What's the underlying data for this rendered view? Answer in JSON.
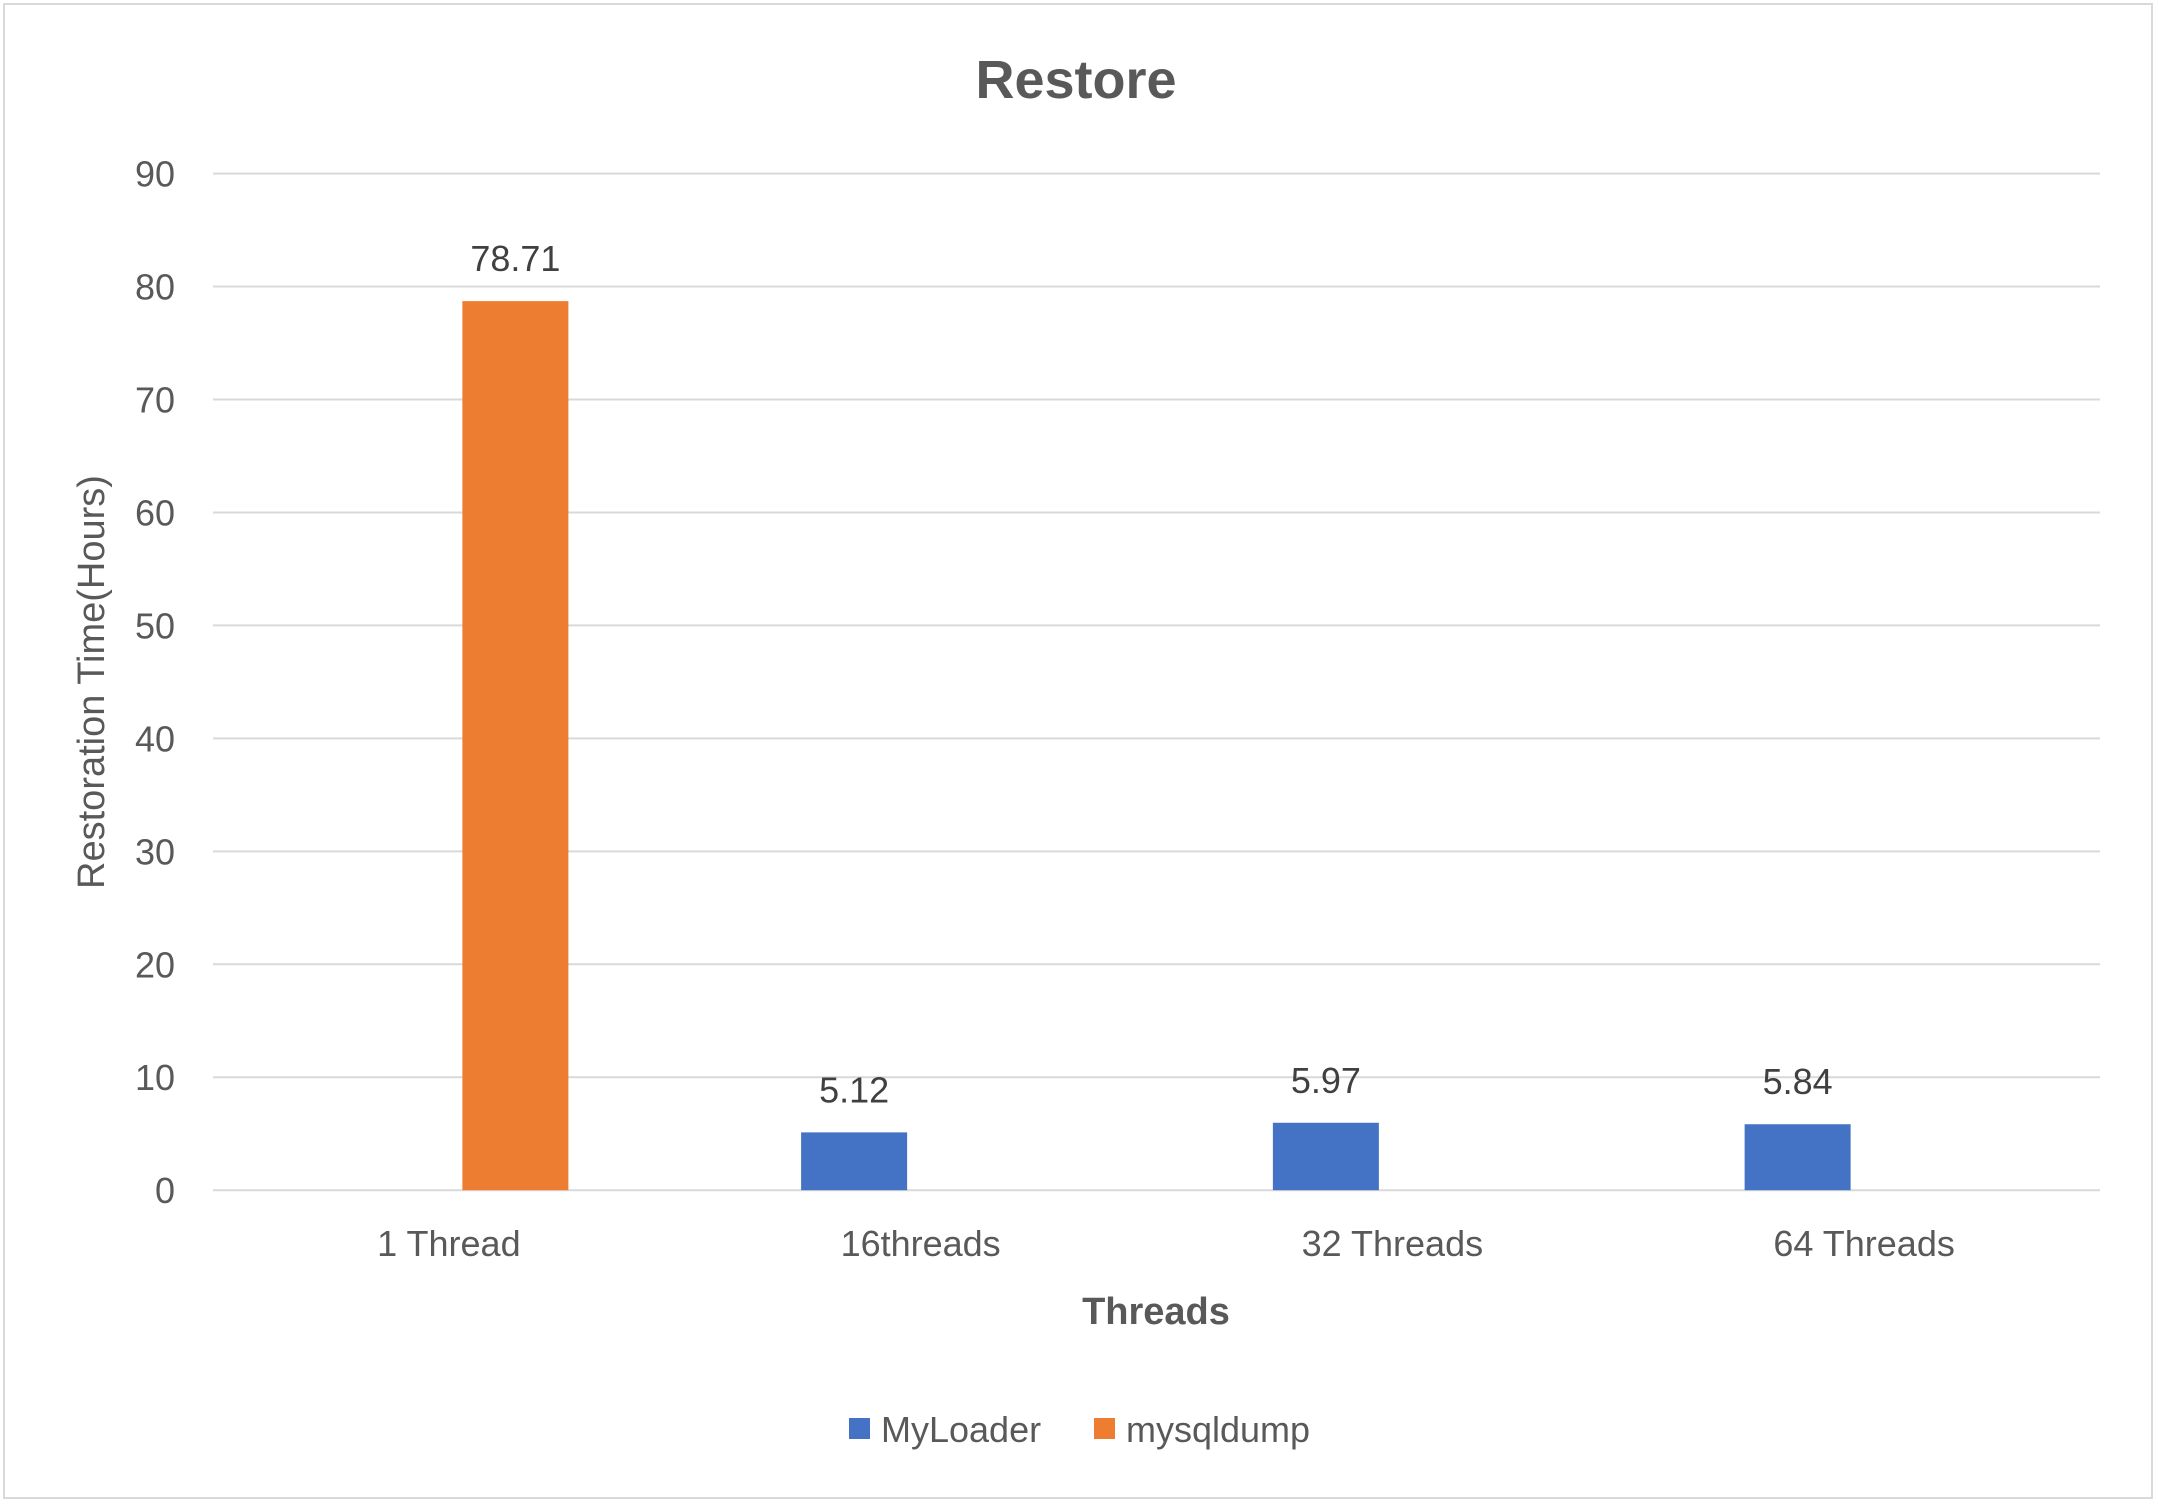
{
  "chart_data": {
    "type": "bar",
    "title": "Restore",
    "xlabel": "Threads",
    "ylabel": "Restoration Time(Hours)",
    "categories": [
      "1 Thread",
      "16threads",
      "32 Threads",
      "64 Threads"
    ],
    "series": [
      {
        "name": "MyLoader",
        "color": "#4472C4",
        "values": [
          null,
          5.12,
          5.97,
          5.84
        ]
      },
      {
        "name": "mysqldump",
        "color": "#ED7D31",
        "values": [
          78.71,
          null,
          null,
          null
        ]
      }
    ],
    "ylim": [
      0,
      90
    ],
    "yticks": [
      0,
      10,
      20,
      30,
      40,
      50,
      60,
      70,
      80,
      90
    ],
    "grid": true,
    "legend": "bottom-center",
    "text_color": "#595959",
    "grid_color": "#D9D9D9"
  }
}
